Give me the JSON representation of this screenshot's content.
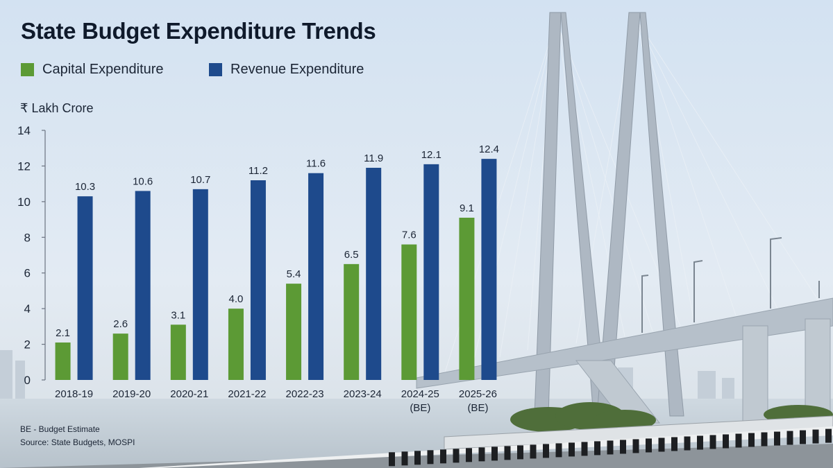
{
  "chart_data": {
    "type": "bar",
    "title": "State Budget Expenditure Trends",
    "ylabel": "₹ Lakh Crore",
    "ylim": [
      0,
      14
    ],
    "yticks": [
      0,
      2,
      4,
      6,
      8,
      10,
      12,
      14
    ],
    "categories": [
      [
        "2018-19"
      ],
      [
        "2019-20"
      ],
      [
        "2020-21"
      ],
      [
        "2021-22"
      ],
      [
        "2022-23"
      ],
      [
        "2023-24"
      ],
      [
        "2024-25",
        "(BE)"
      ],
      [
        "2025-26",
        "(BE)"
      ]
    ],
    "series": [
      {
        "name": "Capital Expenditure",
        "color": "#5c9a35",
        "values": [
          2.1,
          2.6,
          3.1,
          4.0,
          5.4,
          6.5,
          7.6,
          9.1
        ],
        "labels": [
          "2.1",
          "2.6",
          "3.1",
          "4.0",
          "5.4",
          "6.5",
          "7.6",
          "9.1"
        ]
      },
      {
        "name": "Revenue Expenditure",
        "color": "#1e4a8c",
        "values": [
          10.3,
          10.6,
          10.7,
          11.2,
          11.6,
          11.9,
          12.1,
          12.4
        ],
        "labels": [
          "10.3",
          "10.6",
          "10.7",
          "11.2",
          "11.6",
          "11.9",
          "12.1",
          "12.4"
        ]
      }
    ],
    "grid": false,
    "legend": "top-left"
  },
  "notes": {
    "be": "BE - Budget Estimate",
    "source": "Source: State Budgets, MOSPI"
  }
}
